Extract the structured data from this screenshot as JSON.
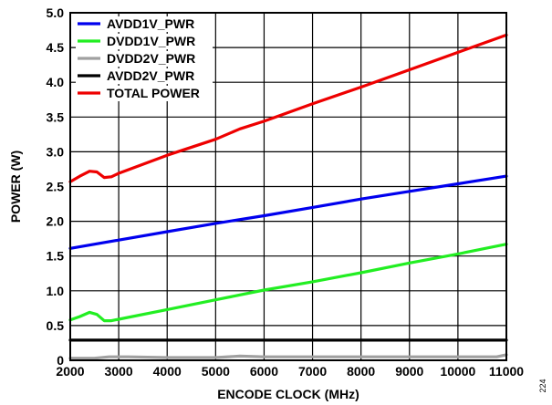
{
  "chart_data": {
    "type": "line",
    "xlabel": "ENCODE CLOCK (MHz)",
    "ylabel": "POWER (W)",
    "xlim": [
      2000,
      11000
    ],
    "ylim": [
      0,
      5.0
    ],
    "x_ticks": [
      "2000",
      "3000",
      "4000",
      "5000",
      "6000",
      "7000",
      "8000",
      "9000",
      "10000",
      "11000"
    ],
    "y_ticks": [
      "0",
      "0.5",
      "1.0",
      "1.5",
      "2.0",
      "2.5",
      "3.0",
      "3.5",
      "4.0",
      "4.5",
      "5.0"
    ],
    "grid": true,
    "legend_position": "top-left",
    "side_note": "224",
    "series": [
      {
        "name": "AVDD1V_PWR",
        "color": "#0000ee",
        "x": [
          2000,
          3000,
          4000,
          5000,
          6000,
          7000,
          8000,
          9000,
          10000,
          11000
        ],
        "y": [
          1.61,
          1.73,
          1.85,
          1.97,
          2.08,
          2.2,
          2.32,
          2.43,
          2.54,
          2.65
        ]
      },
      {
        "name": "DVDD1V_PWR",
        "color": "#22ee22",
        "x": [
          2000,
          2200,
          2400,
          2550,
          2700,
          2850,
          3000,
          4000,
          5000,
          6000,
          7000,
          8000,
          9000,
          10000,
          11000
        ],
        "y": [
          0.58,
          0.63,
          0.69,
          0.66,
          0.57,
          0.57,
          0.59,
          0.73,
          0.87,
          1.01,
          1.13,
          1.26,
          1.4,
          1.53,
          1.67
        ]
      },
      {
        "name": "DVDD2V_PWR",
        "color": "#a0a0a0",
        "x": [
          2000,
          2500,
          2800,
          3200,
          4000,
          5000,
          5500,
          6000,
          7000,
          8000,
          9000,
          10000,
          10800,
          11000
        ],
        "y": [
          0.03,
          0.03,
          0.05,
          0.05,
          0.04,
          0.04,
          0.06,
          0.05,
          0.05,
          0.05,
          0.05,
          0.05,
          0.05,
          0.08
        ]
      },
      {
        "name": "AVDD2V_PWR",
        "color": "#000000",
        "x": [
          2000,
          11000
        ],
        "y": [
          0.29,
          0.29
        ]
      },
      {
        "name": "TOTAL POWER",
        "color": "#ee0000",
        "x": [
          2000,
          2200,
          2400,
          2550,
          2700,
          2850,
          3000,
          4000,
          5000,
          5500,
          6000,
          7000,
          8000,
          9000,
          10000,
          11000
        ],
        "y": [
          2.57,
          2.65,
          2.72,
          2.71,
          2.63,
          2.64,
          2.69,
          2.95,
          3.18,
          3.33,
          3.44,
          3.69,
          3.93,
          4.18,
          4.43,
          4.68
        ]
      }
    ]
  }
}
